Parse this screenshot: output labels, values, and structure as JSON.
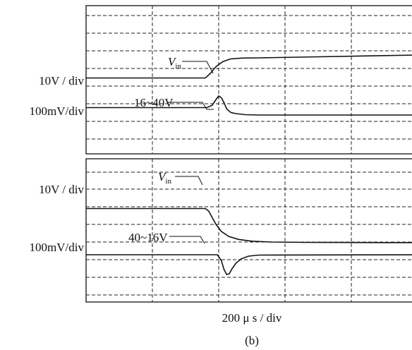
{
  "chart_data": [
    {
      "type": "line",
      "panel": "top",
      "xlabel": "200 μ s / div",
      "grid": true,
      "channels": [
        {
          "scale_label": "10V / div",
          "annotation_text": "V",
          "annotation_sub": "in",
          "x": [
            0,
            1.8,
            1.88,
            1.96,
            2.06,
            2.18,
            2.35,
            2.6,
            3.5,
            4.5,
            5
          ],
          "y": [
            4.3,
            4.3,
            4.58,
            4.95,
            5.22,
            5.38,
            5.43,
            5.44,
            5.5,
            5.57,
            5.6
          ]
        },
        {
          "scale_label": "100mV/div",
          "annotation_text": "16~40V",
          "x": [
            0,
            1.82,
            1.9,
            1.96,
            2.0,
            2.04,
            2.08,
            2.12,
            2.18,
            2.26,
            2.4,
            2.6,
            3.0,
            4.0,
            5
          ],
          "y": [
            2.62,
            2.62,
            2.75,
            3.08,
            3.28,
            3.18,
            2.9,
            2.55,
            2.35,
            2.28,
            2.22,
            2.2,
            2.2,
            2.2,
            2.2
          ]
        }
      ]
    },
    {
      "type": "line",
      "panel": "bottom",
      "grid": true,
      "channels": [
        {
          "scale_label": "10V / div",
          "annotation_text": "V",
          "annotation_sub": "in",
          "x": [
            0,
            1.8,
            1.85,
            1.9,
            1.96,
            2.04,
            2.15,
            2.3,
            2.5,
            2.8,
            3.3,
            4.5,
            5
          ],
          "y": [
            5.3,
            5.3,
            5.15,
            4.8,
            4.4,
            4.0,
            3.72,
            3.55,
            3.45,
            3.4,
            3.38,
            3.37,
            3.37
          ]
        },
        {
          "scale_label": "100mV/div",
          "annotation_text": "40~16V",
          "x": [
            0,
            1.98,
            2.04,
            2.08,
            2.12,
            2.16,
            2.2,
            2.26,
            2.34,
            2.45,
            2.6,
            5
          ],
          "y": [
            2.68,
            2.68,
            2.35,
            1.85,
            1.56,
            1.6,
            1.88,
            2.2,
            2.45,
            2.6,
            2.66,
            2.68
          ]
        }
      ]
    }
  ],
  "figure": {
    "caption": "(b)"
  }
}
